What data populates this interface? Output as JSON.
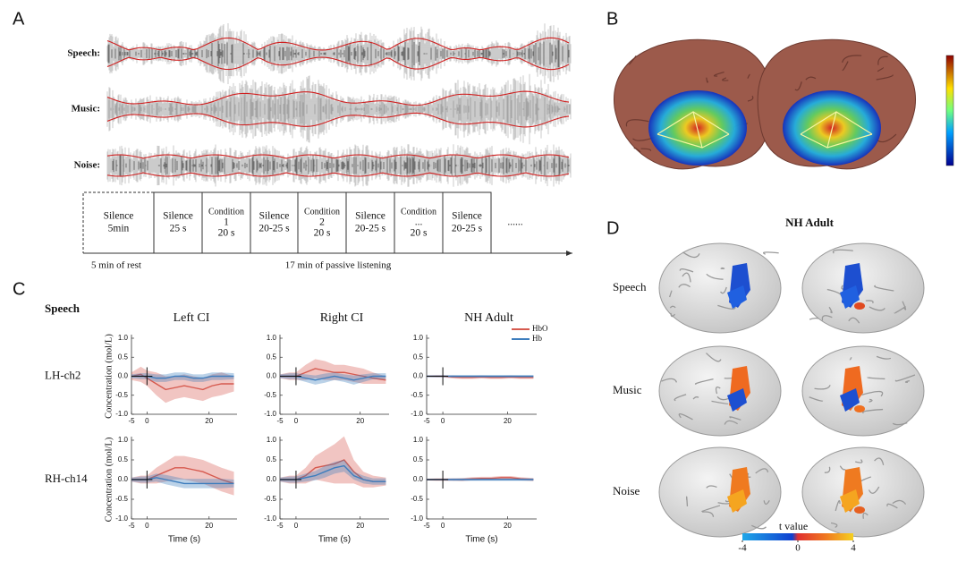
{
  "panel_labels": [
    "A",
    "B",
    "C",
    "D"
  ],
  "panel_a": {
    "rows": [
      "Speech:",
      "Music:",
      "Noise:"
    ],
    "timeline": [
      [
        "Silence",
        "5min"
      ],
      [
        "Silence",
        "25 s"
      ],
      [
        "Condition",
        "1",
        "20 s"
      ],
      [
        "Silence",
        "20-25 s"
      ],
      [
        "Condition",
        "2",
        "20 s"
      ],
      [
        "Silence",
        "20-25 s"
      ],
      [
        "Condition",
        "...",
        "20 s"
      ],
      [
        "Silence",
        "20-25 s"
      ],
      [
        "......"
      ]
    ],
    "rest_label": "5 min of rest",
    "listening_label": "17 min of passive listening"
  },
  "panel_c": {
    "type": "line",
    "title": "Speech",
    "columns": [
      "Left CI",
      "Right CI",
      "NH Adult"
    ],
    "rows": [
      "LH-ch2",
      "RH-ch14"
    ],
    "ylabel": "Concentration (mol/L)",
    "xlabel": "Time (s)",
    "xlim": [
      -5,
      29
    ],
    "ylim": [
      -1,
      1
    ],
    "xticks": [
      -5,
      0,
      20
    ],
    "yticks": [
      {
        "value": -1,
        "label": "-1.0"
      },
      -0.5,
      {
        "value": 0,
        "label": "0.0"
      },
      0.5,
      {
        "value": 1,
        "label": "1.0"
      }
    ],
    "legend": [
      {
        "name": "HbO",
        "color": "#d65a4f"
      },
      {
        "name": "Hb",
        "color": "#3d7dbd"
      }
    ],
    "x": [
      -5,
      -2,
      0,
      3,
      6,
      9,
      12,
      15,
      18,
      21,
      24,
      28
    ],
    "plots": [
      {
        "series": [
          {
            "values": [
              0,
              0.05,
              -0.05,
              -0.2,
              -0.35,
              -0.3,
              -0.25,
              -0.3,
              -0.35,
              -0.25,
              -0.2,
              -0.2
            ],
            "error": [
              0.1,
              0.2,
              0.2,
              0.3,
              0.35,
              0.3,
              0.3,
              0.3,
              0.3,
              0.3,
              0.3,
              0.2
            ]
          },
          {
            "values": [
              0,
              0,
              0,
              -0.05,
              -0.05,
              0,
              0,
              -0.05,
              -0.05,
              0,
              0,
              0
            ],
            "error": [
              0.05,
              0.08,
              0.08,
              0.1,
              0.1,
              0.1,
              0.1,
              0.1,
              0.1,
              0.1,
              0.1,
              0.08
            ]
          }
        ]
      },
      {
        "series": [
          {
            "values": [
              0,
              0,
              0,
              0.1,
              0.2,
              0.15,
              0.1,
              0.1,
              0.05,
              0,
              -0.05,
              -0.1
            ],
            "error": [
              0.05,
              0.1,
              0.1,
              0.2,
              0.25,
              0.25,
              0.2,
              0.2,
              0.2,
              0.2,
              0.15,
              0.1
            ]
          },
          {
            "values": [
              0,
              0,
              0,
              -0.05,
              -0.1,
              -0.05,
              0,
              -0.05,
              -0.1,
              -0.05,
              0,
              0
            ],
            "error": [
              0.05,
              0.08,
              0.08,
              0.1,
              0.12,
              0.12,
              0.1,
              0.1,
              0.12,
              0.1,
              0.08,
              0.08
            ]
          }
        ]
      },
      {
        "series": [
          {
            "values": [
              0,
              0,
              0,
              -0.02,
              -0.03,
              -0.03,
              -0.02,
              -0.03,
              -0.03,
              -0.02,
              -0.03,
              -0.03
            ],
            "error": [
              0.02,
              0.03,
              0.03,
              0.04,
              0.04,
              0.04,
              0.04,
              0.04,
              0.04,
              0.04,
              0.04,
              0.04
            ]
          },
          {
            "values": [
              0,
              0,
              0,
              0,
              0,
              0,
              0,
              0,
              0,
              0,
              0,
              0
            ],
            "error": [
              0.02,
              0.02,
              0.02,
              0.03,
              0.03,
              0.03,
              0.03,
              0.03,
              0.03,
              0.03,
              0.03,
              0.03
            ]
          }
        ]
      },
      {
        "series": [
          {
            "values": [
              0,
              0,
              0,
              0.1,
              0.2,
              0.3,
              0.3,
              0.25,
              0.2,
              0.1,
              0,
              -0.1
            ],
            "error": [
              0.05,
              0.1,
              0.1,
              0.2,
              0.25,
              0.3,
              0.3,
              0.3,
              0.3,
              0.3,
              0.3,
              0.3
            ]
          },
          {
            "values": [
              0,
              0,
              0,
              0.05,
              0,
              -0.05,
              -0.1,
              -0.1,
              -0.1,
              -0.1,
              -0.1,
              -0.1
            ],
            "error": [
              0.05,
              0.08,
              0.08,
              0.1,
              0.12,
              0.12,
              0.12,
              0.12,
              0.12,
              0.12,
              0.12,
              0.1
            ]
          }
        ]
      },
      {
        "series": [
          {
            "values": [
              0,
              0,
              0,
              0.1,
              0.3,
              0.35,
              0.4,
              0.5,
              0.2,
              0,
              -0.05,
              -0.05
            ],
            "error": [
              0.05,
              0.1,
              0.1,
              0.2,
              0.3,
              0.4,
              0.5,
              0.6,
              0.3,
              0.2,
              0.15,
              0.1
            ]
          },
          {
            "values": [
              0,
              0,
              0,
              0.05,
              0.1,
              0.2,
              0.3,
              0.35,
              0.1,
              0,
              -0.05,
              -0.05
            ],
            "error": [
              0.05,
              0.08,
              0.08,
              0.1,
              0.12,
              0.15,
              0.15,
              0.15,
              0.1,
              0.1,
              0.08,
              0.08
            ]
          }
        ]
      },
      {
        "series": [
          {
            "values": [
              0,
              0,
              0,
              0,
              0,
              0.02,
              0.03,
              0.03,
              0.05,
              0.05,
              0.02,
              0
            ],
            "error": [
              0.02,
              0.03,
              0.03,
              0.03,
              0.04,
              0.04,
              0.04,
              0.04,
              0.04,
              0.04,
              0.04,
              0.04
            ]
          },
          {
            "values": [
              0,
              0,
              0,
              0,
              0,
              0,
              0,
              0,
              0,
              0,
              0,
              0
            ],
            "error": [
              0.02,
              0.02,
              0.02,
              0.03,
              0.03,
              0.03,
              0.03,
              0.03,
              0.03,
              0.03,
              0.03,
              0.03
            ]
          }
        ]
      }
    ]
  },
  "panel_d": {
    "title": "NH Adult",
    "rows": [
      "Speech",
      "Music",
      "Noise"
    ],
    "colorbar_label": "t value",
    "colorbar_lim": [
      -4,
      4
    ],
    "colorbar_ticks": [
      -4,
      0,
      4
    ]
  }
}
